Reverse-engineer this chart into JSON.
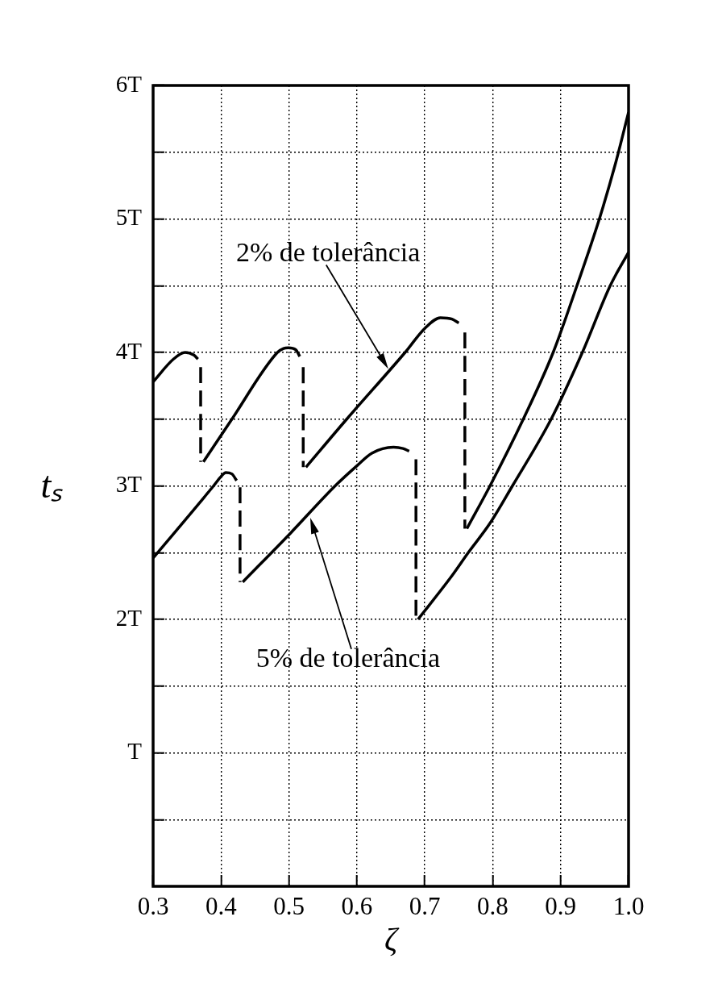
{
  "chart_data": {
    "type": "line",
    "xlabel": "ζ",
    "ylabel": "tₛ",
    "xlim": [
      0.3,
      1.0
    ],
    "xticks": [
      0.3,
      0.4,
      0.5,
      0.6,
      0.7,
      0.8,
      0.9,
      {
        "value": 1.0,
        "label": "1.0"
      }
    ],
    "ylim": [
      0,
      6
    ],
    "yticks": [
      {
        "value": 0.5,
        "label": null
      },
      {
        "value": 1,
        "label": "T"
      },
      {
        "value": 1.5,
        "label": null
      },
      {
        "value": 2,
        "label": "2T"
      },
      {
        "value": 2.5,
        "label": null
      },
      {
        "value": 3,
        "label": "3T"
      },
      {
        "value": 3.5,
        "label": null
      },
      {
        "value": 4,
        "label": "4T"
      },
      {
        "value": 4.5,
        "label": null
      },
      {
        "value": 5,
        "label": "5T"
      },
      {
        "value": 5.5,
        "label": null
      },
      {
        "value": 6,
        "label": "6T"
      }
    ],
    "grid": true,
    "marker": "none",
    "series": [
      {
        "color": "#000000",
        "line_style": "solid",
        "x": [
          0.3,
          0.33,
          0.347,
          0.36,
          0.366
        ],
        "values": [
          3.78,
          3.95,
          4.0,
          3.98,
          3.95
        ]
      },
      {
        "color": "#000000",
        "line_style": "dashed",
        "x": [
          0.37,
          0.37
        ],
        "values": [
          3.89,
          3.18
        ]
      },
      {
        "color": "#000000",
        "line_style": "solid",
        "x": [
          0.374,
          0.416,
          0.483,
          0.492,
          0.499,
          0.51,
          0.516
        ],
        "values": [
          3.18,
          3.5,
          4.0,
          4.03,
          4.035,
          4.02,
          3.97
        ]
      },
      {
        "color": "#000000",
        "line_style": "dashed",
        "x": [
          0.521,
          0.521
        ],
        "values": [
          3.89,
          3.14
        ]
      },
      {
        "color": "#000000",
        "line_style": "solid",
        "x": [
          0.525,
          0.585,
          0.671,
          0.7,
          0.723,
          0.74,
          0.75
        ],
        "values": [
          3.14,
          3.5,
          4.0,
          4.18,
          4.26,
          4.25,
          4.22
        ]
      },
      {
        "color": "#000000",
        "line_style": "dashed",
        "x": [
          0.759,
          0.759
        ],
        "values": [
          4.15,
          2.68
        ]
      },
      {
        "color": "#000000",
        "line_style": "solid",
        "x": [
          0.762,
          0.796,
          0.845,
          0.889,
          0.924,
          0.957,
          0.981,
          1.0
        ],
        "values": [
          2.68,
          3.0,
          3.5,
          4.0,
          4.5,
          5.0,
          5.42,
          5.8
        ]
      },
      {
        "color": "#000000",
        "line_style": "solid",
        "x": [
          0.3,
          0.389,
          0.4,
          0.407,
          0.416,
          0.423
        ],
        "values": [
          2.46,
          3.0,
          3.07,
          3.1,
          3.09,
          3.04
        ]
      },
      {
        "color": "#000000",
        "line_style": "dashed",
        "x": [
          0.428,
          0.428
        ],
        "values": [
          2.99,
          2.28
        ]
      },
      {
        "color": "#000000",
        "line_style": "solid",
        "x": [
          0.432,
          0.503,
          0.568,
          0.6,
          0.622,
          0.654,
          0.668,
          0.677
        ],
        "values": [
          2.28,
          2.65,
          3.0,
          3.15,
          3.245,
          3.29,
          3.28,
          3.26
        ]
      },
      {
        "color": "#000000",
        "line_style": "dashed",
        "x": [
          0.687,
          0.687
        ],
        "values": [
          3.2,
          2.0
        ]
      },
      {
        "color": "#000000",
        "line_style": "solid",
        "x": [
          0.69,
          0.739,
          0.764,
          0.796,
          0.829,
          0.886,
          0.932,
          0.973,
          1.0
        ],
        "values": [
          2.0,
          2.32,
          2.5,
          2.72,
          3.0,
          3.5,
          4.0,
          4.5,
          4.75
        ]
      }
    ],
    "annotations": [
      "2% de tolerância",
      "5% de tolerância"
    ]
  }
}
